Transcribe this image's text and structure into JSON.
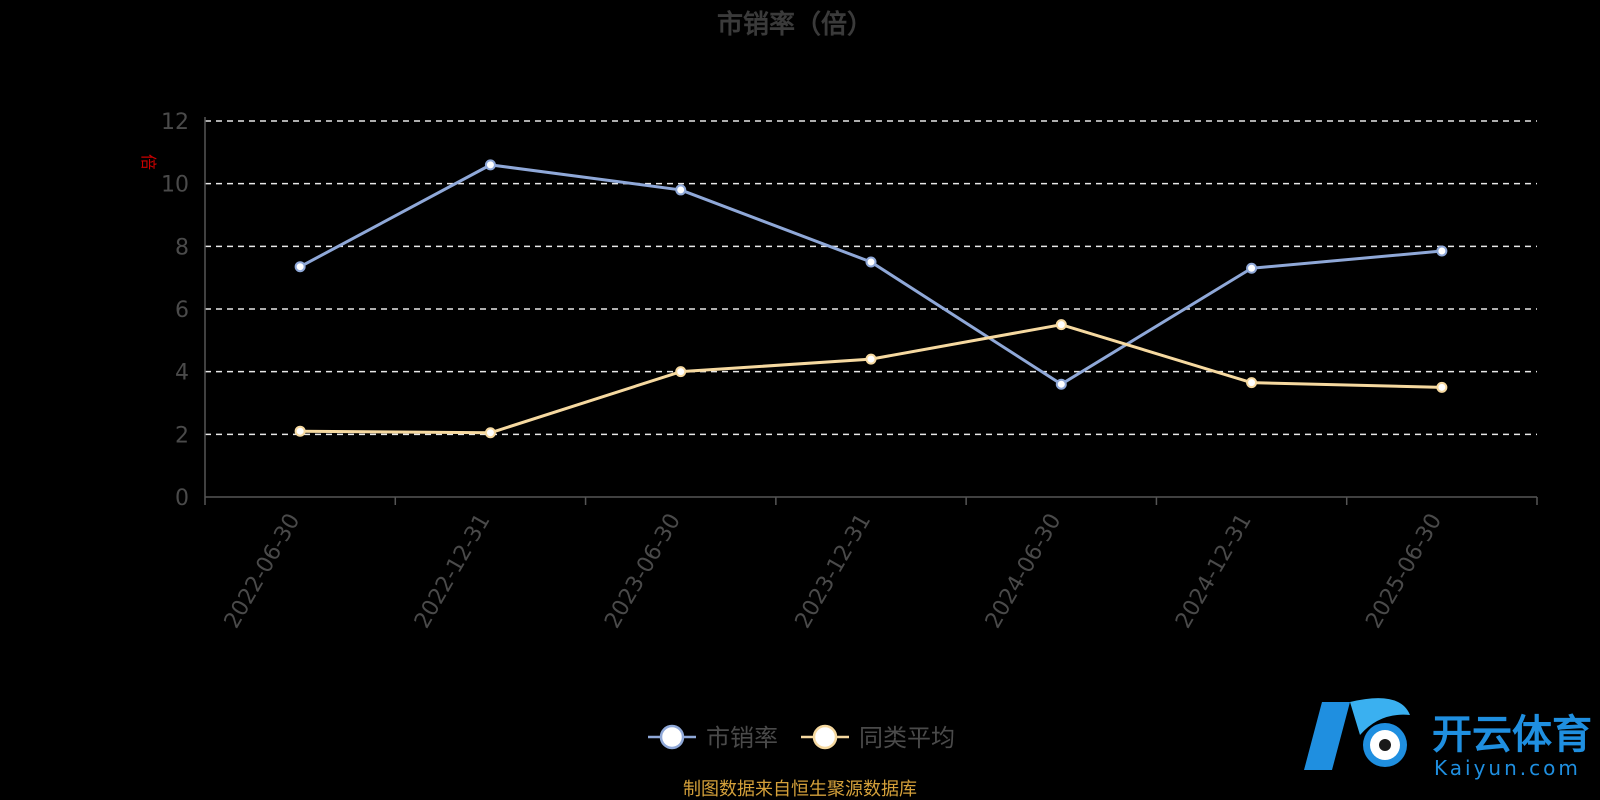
{
  "chart_data": {
    "type": "line",
    "title": "市销率（倍）",
    "ylabel": "倍",
    "ylim": [
      0,
      12
    ],
    "yticks": [
      0,
      2,
      4,
      6,
      8,
      10,
      12
    ],
    "grid": true,
    "legend_position": "bottom",
    "categories": [
      "2022-06-30",
      "2022-12-31",
      "2023-06-30",
      "2023-12-31",
      "2024-06-30",
      "2024-12-31",
      "2025-06-30"
    ],
    "series": [
      {
        "name": "市销率",
        "color": "#8fa8d8",
        "values": [
          7.35,
          10.6,
          9.8,
          7.5,
          3.6,
          7.3,
          7.85
        ]
      },
      {
        "name": "同类平均",
        "color": "#f6d9a0",
        "values": [
          2.1,
          2.05,
          4.0,
          4.4,
          5.5,
          3.65,
          3.5
        ]
      }
    ]
  },
  "source_note": "制图数据来自恒生聚源数据库",
  "watermark": {
    "brand": "开云体育",
    "sub": "Kaiyun.com",
    "color": "#1f8fe0"
  }
}
